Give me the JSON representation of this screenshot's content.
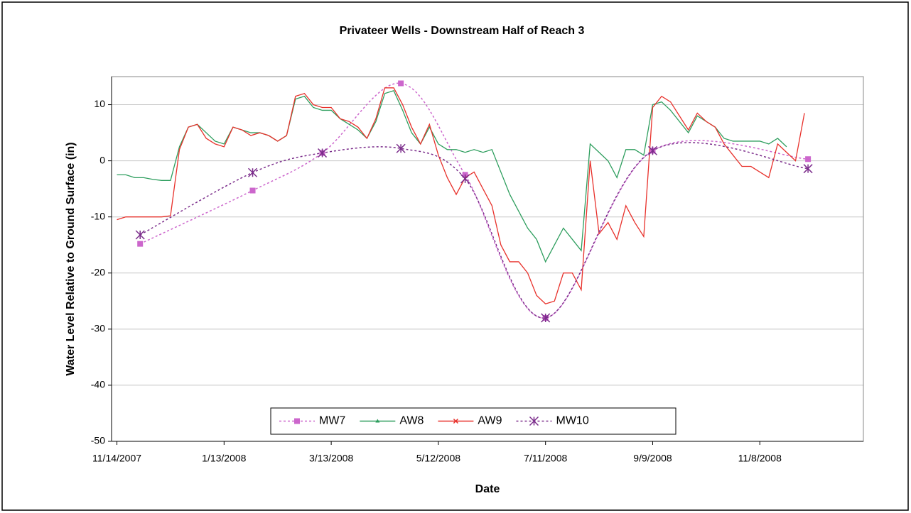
{
  "chart_data": {
    "type": "line",
    "title": "Privateer Wells - Downstream Half of Reach 3",
    "x_label": "Date",
    "y_label": "Water Level Relative to Ground Surface (in)",
    "xlim": [
      "11/11/2007",
      "1/5/2009"
    ],
    "xticks": [
      "11/14/2007",
      "1/13/2008",
      "3/13/2008",
      "5/12/2008",
      "7/11/2008",
      "9/9/2008",
      "11/8/2008"
    ],
    "ylim": [
      -50,
      15
    ],
    "yticks": [
      -50,
      -40,
      -30,
      -20,
      -10,
      0,
      10
    ],
    "grid": true,
    "legend": "bottom",
    "series": [
      {
        "name": "MW7",
        "color": "#cc66cc",
        "style": "dashed",
        "marker": "square",
        "x": [
          "11/27/2007",
          "1/29/2008",
          "3/8/2008",
          "4/21/2008",
          "5/27/2008",
          "7/11/2008",
          "9/9/2008",
          "12/5/2008"
        ],
        "values": [
          -14.8,
          -5.3,
          1.4,
          13.8,
          -2.5,
          -28,
          1.8,
          0.3
        ]
      },
      {
        "name": "AW8",
        "color": "#2e9e5e",
        "style": "solid",
        "marker": "triangle",
        "x": [
          "11/14/2007",
          "11/19/2007",
          "11/24/2007",
          "11/29/2007",
          "12/4/2007",
          "12/9/2007",
          "12/14/2007",
          "12/19/2007",
          "12/24/2007",
          "12/29/2007",
          "1/3/2008",
          "1/8/2008",
          "1/13/2008",
          "1/18/2008",
          "1/23/2008",
          "1/28/2008",
          "2/2/2008",
          "2/7/2008",
          "2/12/2008",
          "2/17/2008",
          "2/22/2008",
          "2/27/2008",
          "3/3/2008",
          "3/8/2008",
          "3/13/2008",
          "3/18/2008",
          "3/23/2008",
          "3/28/2008",
          "4/2/2008",
          "4/7/2008",
          "4/12/2008",
          "4/17/2008",
          "4/22/2008",
          "4/27/2008",
          "5/2/2008",
          "5/7/2008",
          "5/12/2008",
          "5/17/2008",
          "5/22/2008",
          "5/27/2008",
          "6/1/2008",
          "6/6/2008",
          "6/11/2008",
          "6/16/2008",
          "6/21/2008",
          "6/26/2008",
          "7/1/2008",
          "7/6/2008",
          "7/11/2008",
          "7/16/2008",
          "7/21/2008",
          "7/26/2008",
          "7/31/2008",
          "8/5/2008",
          "8/10/2008",
          "8/15/2008",
          "8/20/2008",
          "8/25/2008",
          "8/30/2008",
          "9/4/2008",
          "9/9/2008",
          "9/14/2008",
          "9/19/2008",
          "9/24/2008",
          "9/29/2008",
          "10/4/2008",
          "10/9/2008",
          "10/14/2008",
          "10/19/2008",
          "10/24/2008",
          "10/29/2008",
          "11/3/2008",
          "11/8/2008",
          "11/13/2008",
          "11/18/2008",
          "11/23/2008"
        ],
        "values": [
          -2.5,
          -2.5,
          -3,
          -3,
          -3.3,
          -3.5,
          -3.5,
          2.5,
          6,
          6.5,
          5,
          3.5,
          3,
          6,
          5.5,
          5,
          5,
          4.5,
          3.5,
          4.5,
          11,
          11.5,
          9.5,
          9,
          9,
          7.5,
          6.5,
          5.5,
          4,
          7,
          12,
          12.5,
          9,
          5,
          3,
          6,
          3,
          2,
          2,
          1.5,
          2,
          1.5,
          2,
          -2,
          -6,
          -9,
          -12,
          -14,
          -18,
          -15,
          -12,
          -14,
          -16,
          3,
          1.5,
          0,
          -3,
          2,
          2,
          1,
          10,
          10.5,
          9,
          7,
          5,
          8,
          7,
          6,
          4,
          3.5,
          3.5,
          3.5,
          3.5,
          3,
          4,
          2.5
        ]
      },
      {
        "name": "AW9",
        "color": "#e8312b",
        "style": "solid",
        "marker": "x",
        "x": [
          "11/14/2007",
          "11/19/2007",
          "11/24/2007",
          "11/29/2007",
          "12/4/2007",
          "12/9/2007",
          "12/14/2007",
          "12/19/2007",
          "12/24/2007",
          "12/29/2007",
          "1/3/2008",
          "1/8/2008",
          "1/13/2008",
          "1/18/2008",
          "1/23/2008",
          "1/28/2008",
          "2/2/2008",
          "2/7/2008",
          "2/12/2008",
          "2/17/2008",
          "2/22/2008",
          "2/27/2008",
          "3/3/2008",
          "3/8/2008",
          "3/13/2008",
          "3/18/2008",
          "3/23/2008",
          "3/28/2008",
          "4/2/2008",
          "4/7/2008",
          "4/12/2008",
          "4/17/2008",
          "4/22/2008",
          "4/27/2008",
          "5/2/2008",
          "5/7/2008",
          "5/12/2008",
          "5/17/2008",
          "5/22/2008",
          "5/27/2008",
          "6/1/2008",
          "6/6/2008",
          "6/11/2008",
          "6/16/2008",
          "6/21/2008",
          "6/26/2008",
          "7/1/2008",
          "7/6/2008",
          "7/11/2008",
          "7/16/2008",
          "7/21/2008",
          "7/26/2008",
          "7/31/2008",
          "8/5/2008",
          "8/10/2008",
          "8/15/2008",
          "8/20/2008",
          "8/25/2008",
          "8/30/2008",
          "9/4/2008",
          "9/9/2008",
          "9/14/2008",
          "9/19/2008",
          "9/24/2008",
          "9/29/2008",
          "10/4/2008",
          "10/9/2008",
          "10/14/2008",
          "10/19/2008",
          "10/24/2008",
          "10/29/2008",
          "11/3/2008",
          "11/8/2008",
          "11/13/2008",
          "11/18/2008",
          "11/23/2008",
          "11/28/2008",
          "12/3/2008"
        ],
        "values": [
          -10.5,
          -10,
          -10,
          -10,
          -10,
          -10,
          -9.8,
          2,
          6,
          6.5,
          4,
          3,
          2.5,
          6,
          5.5,
          4.5,
          5,
          4.5,
          3.5,
          4.5,
          11.5,
          12,
          10,
          9.5,
          9.5,
          7.5,
          7,
          6,
          4,
          7.5,
          13,
          13,
          10,
          6,
          3,
          6.5,
          1,
          -3,
          -6,
          -3,
          -2,
          -5,
          -8,
          -15,
          -18,
          -18,
          -20,
          -24,
          -25.5,
          -25,
          -20,
          -20,
          -23,
          0,
          -13,
          -11,
          -14,
          -8,
          -11,
          -13.5,
          9.5,
          11.5,
          10.5,
          8,
          5.5,
          8.5,
          7,
          6,
          3,
          1,
          -1,
          -1,
          -2,
          -3,
          3,
          1.5,
          0,
          8.5
        ]
      },
      {
        "name": "MW10",
        "color": "#7b2d8b",
        "style": "dashed",
        "marker": "asterisk",
        "x": [
          "11/27/2007",
          "1/29/2008",
          "3/8/2008",
          "4/21/2008",
          "5/27/2008",
          "7/11/2008",
          "9/9/2008",
          "12/5/2008"
        ],
        "values": [
          -13.2,
          -2.1,
          1.4,
          2.2,
          -3.2,
          -28,
          1.8,
          -1.4
        ]
      }
    ]
  }
}
